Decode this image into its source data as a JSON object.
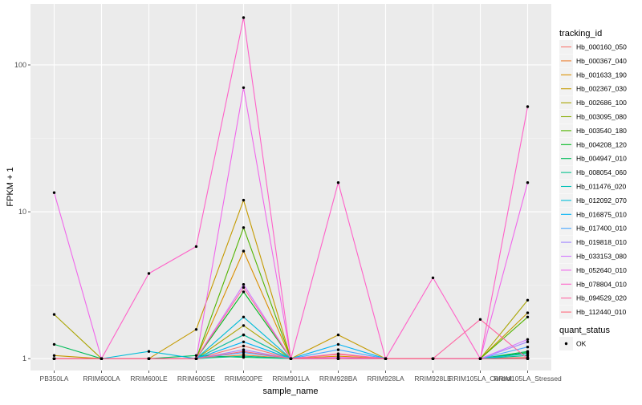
{
  "chart_data": {
    "type": "line",
    "xlabel": "sample_name",
    "ylabel": "FPKM + 1",
    "y_scale": "log10",
    "ylim": [
      0.83,
      260
    ],
    "y_ticks": [
      1,
      10,
      100
    ],
    "y_tick_labels": [
      "1",
      "10",
      "100"
    ],
    "grid": true,
    "legend_position": "right",
    "categories": [
      "PB350LA",
      "RRIM600LA",
      "RRIM600LE",
      "RRIM600SE",
      "RRIM600PE",
      "RRIM901LA",
      "RRIM928BA",
      "RRIM928LA",
      "RRIM928LE",
      "RRIM105LA_Control",
      "RRIM105LA_Stressed"
    ],
    "legend_title": "tracking_id",
    "series": [
      {
        "name": "Hb_000160_050",
        "color": "#F8766D",
        "values": [
          1.0,
          1.0,
          1.0,
          1.0,
          1.22,
          1.0,
          1.07,
          1.0,
          1.0,
          1.0,
          1.02
        ]
      },
      {
        "name": "Hb_000367_040",
        "color": "#EB8335",
        "values": [
          1.0,
          1.0,
          1.0,
          1.0,
          1.06,
          1.0,
          1.0,
          1.0,
          1.0,
          1.0,
          1.0
        ]
      },
      {
        "name": "Hb_001633_190",
        "color": "#DA8F00",
        "values": [
          1.0,
          1.0,
          1.0,
          1.0,
          5.4,
          1.0,
          1.04,
          1.0,
          1.0,
          1.0,
          1.0
        ]
      },
      {
        "name": "Hb_002367_030",
        "color": "#C49A00",
        "values": [
          1.05,
          1.0,
          1.0,
          1.58,
          12.0,
          1.0,
          1.45,
          1.0,
          1.0,
          1.0,
          2.05
        ]
      },
      {
        "name": "Hb_002686_100",
        "color": "#A9A400",
        "values": [
          2.0,
          1.0,
          1.0,
          1.0,
          1.68,
          1.0,
          1.0,
          1.0,
          1.0,
          1.0,
          2.5
        ]
      },
      {
        "name": "Hb_003095_080",
        "color": "#86AC00",
        "values": [
          1.0,
          1.0,
          1.0,
          1.0,
          1.45,
          1.0,
          1.0,
          1.0,
          1.0,
          1.0,
          1.0
        ]
      },
      {
        "name": "Hb_003540_180",
        "color": "#53B400",
        "values": [
          1.0,
          1.0,
          1.0,
          1.0,
          7.8,
          1.0,
          1.0,
          1.0,
          1.0,
          1.0,
          1.92
        ]
      },
      {
        "name": "Hb_004208_120",
        "color": "#00B81F",
        "values": [
          1.0,
          1.0,
          1.0,
          1.0,
          2.85,
          1.0,
          1.0,
          1.0,
          1.0,
          1.0,
          1.1
        ]
      },
      {
        "name": "Hb_004947_010",
        "color": "#00BC59",
        "values": [
          1.25,
          1.0,
          1.0,
          1.05,
          1.02,
          1.0,
          1.0,
          1.0,
          1.0,
          1.0,
          1.12
        ]
      },
      {
        "name": "Hb_008054_060",
        "color": "#00C08D",
        "values": [
          1.0,
          1.0,
          1.0,
          1.0,
          1.04,
          1.0,
          1.0,
          1.0,
          1.0,
          1.0,
          1.05
        ]
      },
      {
        "name": "Hb_011476_020",
        "color": "#00C0B6",
        "values": [
          1.0,
          1.0,
          1.0,
          1.0,
          1.45,
          1.0,
          1.0,
          1.0,
          1.0,
          1.0,
          1.0
        ]
      },
      {
        "name": "Hb_012092_070",
        "color": "#00BCD8",
        "values": [
          1.0,
          1.0,
          1.12,
          1.0,
          1.92,
          1.0,
          1.0,
          1.0,
          1.0,
          1.0,
          1.08
        ]
      },
      {
        "name": "Hb_016875_010",
        "color": "#00B3F4",
        "values": [
          1.0,
          1.0,
          1.0,
          1.0,
          1.3,
          1.0,
          1.25,
          1.0,
          1.0,
          1.0,
          1.0
        ]
      },
      {
        "name": "Hb_017400_010",
        "color": "#4AA7FF",
        "values": [
          1.0,
          1.0,
          1.0,
          1.0,
          1.1,
          1.0,
          1.15,
          1.0,
          1.0,
          1.0,
          1.2
        ]
      },
      {
        "name": "Hb_019818_010",
        "color": "#A38AFF",
        "values": [
          1.0,
          1.0,
          1.0,
          1.0,
          1.15,
          1.0,
          1.0,
          1.0,
          1.0,
          1.0,
          1.3
        ]
      },
      {
        "name": "Hb_033153_080",
        "color": "#D279FF",
        "values": [
          1.0,
          1.0,
          1.0,
          1.0,
          3.2,
          1.0,
          1.0,
          1.0,
          1.0,
          1.0,
          1.35
        ]
      },
      {
        "name": "Hb_052640_010",
        "color": "#F067EB",
        "values": [
          13.5,
          1.0,
          1.0,
          1.0,
          70.0,
          1.0,
          1.02,
          1.0,
          1.0,
          1.0,
          15.8
        ]
      },
      {
        "name": "Hb_078804_010",
        "color": "#FF61C8",
        "values": [
          1.0,
          1.0,
          3.8,
          5.8,
          210.0,
          1.0,
          15.8,
          1.0,
          3.55,
          1.0,
          52.0
        ]
      },
      {
        "name": "Hb_094529_020",
        "color": "#FF66A3",
        "values": [
          1.0,
          1.0,
          1.0,
          1.0,
          3.05,
          1.0,
          1.08,
          1.0,
          1.0,
          1.85,
          1.0
        ]
      },
      {
        "name": "Hb_112440_010",
        "color": "#FF6A7E",
        "values": [
          1.0,
          1.0,
          1.0,
          1.0,
          1.12,
          1.0,
          1.0,
          1.0,
          1.0,
          1.0,
          1.0
        ]
      }
    ],
    "point_legend_title": "quant_status",
    "point_legend_entries": [
      "OK"
    ]
  }
}
